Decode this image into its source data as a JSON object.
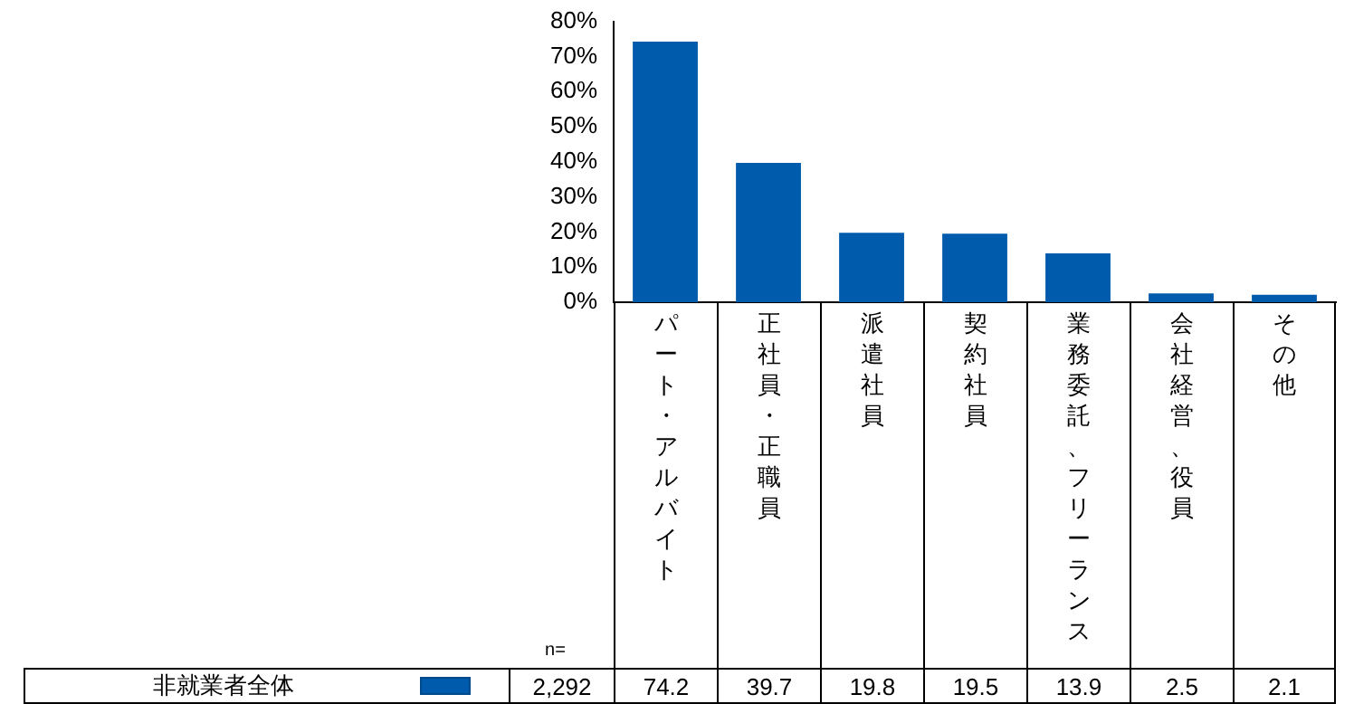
{
  "chart_data": {
    "type": "bar",
    "categories": [
      "パート・アルバイト",
      "正社員・正職員",
      "派遣社員",
      "契約社員",
      "業務委託、フリーランス",
      "会社経営、役員",
      "その他"
    ],
    "series": [
      {
        "name": "非就業者全体",
        "color": "#005bac",
        "values": [
          74.2,
          39.7,
          19.8,
          19.5,
          13.9,
          2.5,
          2.1
        ]
      }
    ],
    "ylim": [
      0,
      80
    ],
    "yticks": [
      {
        "value": 0,
        "label": "0%"
      },
      {
        "value": 10,
        "label": "10%"
      },
      {
        "value": 20,
        "label": "20%"
      },
      {
        "value": 30,
        "label": "30%"
      },
      {
        "value": 40,
        "label": "40%"
      },
      {
        "value": 50,
        "label": "50%"
      },
      {
        "value": 60,
        "label": "60%"
      },
      {
        "value": 70,
        "label": "70%"
      },
      {
        "value": 80,
        "label": "80%"
      }
    ],
    "data_labels": true,
    "legend": "bottom",
    "grid": false,
    "annotations": [
      "n=",
      "2,292"
    ]
  }
}
